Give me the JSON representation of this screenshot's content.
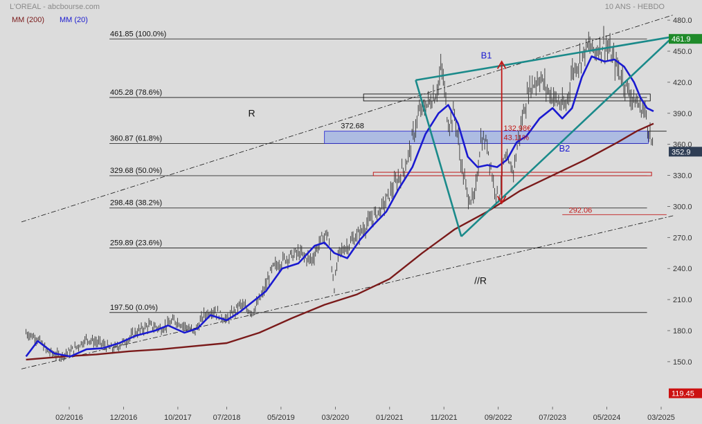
{
  "chart_data": {
    "type": "line",
    "title": "L'OREAL - abcbourse.com",
    "subtitle": "10 ANS - HEBDO",
    "xlabel": "",
    "ylabel": "",
    "ylim": [
      119.45,
      480
    ],
    "y_ticks": [
      480.0,
      450.0,
      420.0,
      390.0,
      360.0,
      330.0,
      300.0,
      270.0,
      240.0,
      210.0,
      180.0,
      150.0
    ],
    "y_tick_labels": [
      "480.0",
      "450.0",
      "420.0",
      "390.0",
      "360.0",
      "330.0",
      "300.0",
      "270.0",
      "240.0",
      "210.0",
      "180.0",
      "150.0"
    ],
    "x_ticks": [
      2016.083,
      2016.917,
      2017.75,
      2018.5,
      2019.333,
      2020.167,
      2021.0,
      2021.833,
      2022.667,
      2023.5,
      2024.333,
      2025.167
    ],
    "x_tick_labels": [
      "02/2016",
      "12/2016",
      "10/2017",
      "07/2018",
      "05/2019",
      "03/2020",
      "01/2021",
      "11/2021",
      "09/2022",
      "07/2023",
      "05/2024",
      "03/2025"
    ],
    "x_range": [
      2015.4,
      2025.3
    ],
    "grid": false,
    "legend": "top-left",
    "price_anchors": {
      "x": [
        2015.42,
        2015.6,
        2015.75,
        2015.95,
        2016.15,
        2016.35,
        2016.55,
        2016.75,
        2016.95,
        2017.1,
        2017.3,
        2017.5,
        2017.7,
        2017.85,
        2018.0,
        2018.15,
        2018.3,
        2018.5,
        2018.7,
        2018.9,
        2019.05,
        2019.2,
        2019.4,
        2019.6,
        2019.8,
        2019.95,
        2020.05,
        2020.15,
        2020.22,
        2020.35,
        2020.55,
        2020.75,
        2020.9,
        2021.05,
        2021.25,
        2021.45,
        2021.6,
        2021.72,
        2021.8,
        2021.9,
        2022.0,
        2022.1,
        2022.2,
        2022.3,
        2022.4,
        2022.5,
        2022.6,
        2022.68,
        2022.75,
        2022.9,
        2023.05,
        2023.15,
        2023.3,
        2023.45,
        2023.6,
        2023.7,
        2023.8,
        2023.95,
        2024.05,
        2024.15,
        2024.3,
        2024.45,
        2024.6,
        2024.72,
        2024.82,
        2024.92,
        2025.0,
        2025.05
      ],
      "y": [
        178,
        172,
        160,
        155,
        162,
        172,
        168,
        162,
        170,
        178,
        185,
        182,
        190,
        185,
        178,
        195,
        200,
        190,
        205,
        198,
        215,
        240,
        250,
        255,
        248,
        268,
        275,
        222,
        255,
        262,
        275,
        290,
        300,
        318,
        340,
        390,
        400,
        410,
        435,
        380,
        390,
        340,
        310,
        305,
        365,
        360,
        320,
        308,
        345,
        335,
        390,
        415,
        425,
        410,
        400,
        395,
        430,
        445,
        455,
        450,
        458,
        440,
        420,
        405,
        398,
        392,
        368,
        352.9
      ]
    },
    "series": [
      {
        "name": "MM (200)",
        "color": "#7a1a1a",
        "x": [
          2015.42,
          2016.0,
          2016.5,
          2017.0,
          2017.5,
          2018.0,
          2018.5,
          2019.0,
          2019.5,
          2020.0,
          2020.5,
          2021.0,
          2021.5,
          2022.0,
          2022.5,
          2022.75,
          2023.0,
          2023.5,
          2024.0,
          2024.5,
          2024.8,
          2025.05
        ],
        "y": [
          152,
          155,
          157,
          160,
          162,
          165,
          168,
          178,
          192,
          205,
          215,
          230,
          255,
          278,
          295,
          305,
          315,
          330,
          345,
          362,
          373,
          380
        ]
      },
      {
        "name": "MM (20)",
        "color": "#1a1ad0",
        "x": [
          2015.42,
          2015.6,
          2015.85,
          2016.1,
          2016.35,
          2016.6,
          2016.85,
          2017.1,
          2017.4,
          2017.6,
          2017.85,
          2018.05,
          2018.25,
          2018.5,
          2018.7,
          2018.9,
          2019.1,
          2019.35,
          2019.6,
          2019.85,
          2020.0,
          2020.15,
          2020.35,
          2020.55,
          2020.75,
          2020.95,
          2021.15,
          2021.35,
          2021.55,
          2021.75,
          2021.9,
          2022.05,
          2022.2,
          2022.35,
          2022.5,
          2022.65,
          2022.8,
          2022.95,
          2023.1,
          2023.3,
          2023.5,
          2023.65,
          2023.8,
          2023.95,
          2024.1,
          2024.3,
          2024.45,
          2024.6,
          2024.75,
          2024.85,
          2024.95,
          2025.05
        ],
        "y": [
          155,
          170,
          158,
          155,
          162,
          163,
          168,
          175,
          180,
          185,
          178,
          182,
          195,
          190,
          198,
          208,
          218,
          240,
          245,
          262,
          265,
          255,
          250,
          268,
          282,
          295,
          318,
          338,
          370,
          390,
          398,
          380,
          348,
          338,
          340,
          338,
          345,
          362,
          368,
          385,
          395,
          385,
          395,
          425,
          445,
          440,
          442,
          435,
          420,
          405,
          395,
          392
        ]
      }
    ],
    "fibonacci_levels": [
      {
        "value": 461.85,
        "label": "461.85  (100.0%)"
      },
      {
        "value": 405.28,
        "label": "405.28  (78.6%)"
      },
      {
        "value": 360.87,
        "label": "360.87  (61.8%)"
      },
      {
        "value": 329.68,
        "label": "329.68  (50.0%)"
      },
      {
        "value": 298.48,
        "label": "298.48  (38.2%)"
      },
      {
        "value": 259.89,
        "label": "259.89  (23.6%)"
      },
      {
        "value": 197.5,
        "label": "197.50  (0.0%)"
      }
    ],
    "annotations": {
      "r": "R",
      "parallel_r": "//R",
      "b1": "B1",
      "b2": "B2",
      "level_372": "372.68",
      "measure_amount": "132.98€",
      "measure_pct": "43.11%",
      "level_292": "292.06"
    },
    "last_price": "352.9",
    "high_price": "461.9",
    "low_price": "119.45"
  },
  "legend": {
    "mm200_label": "MM (200)",
    "mm20_label": "MM (20)"
  },
  "colors": {
    "background": "#dcdcdc",
    "price": "#333333",
    "mm200": "#7a1a1a",
    "mm20": "#1a1ad0",
    "wedge": "#1a8a8a",
    "arrow": "#c01818",
    "high_badge": "#1f8a2a",
    "low_badge": "#cc1111",
    "last_badge": "#2f3e55"
  }
}
